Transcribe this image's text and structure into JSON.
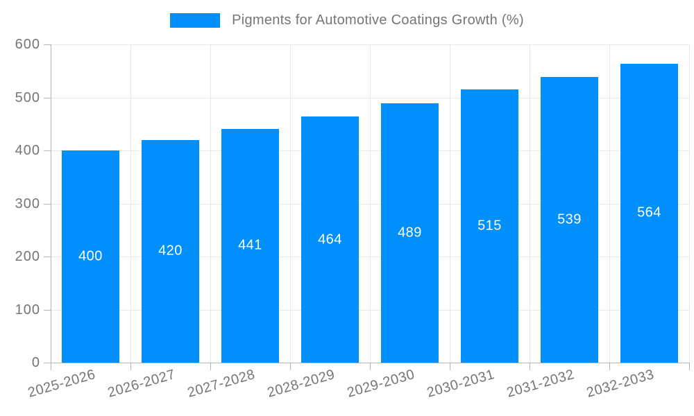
{
  "legend": {
    "label": "Pigments for Automotive Coatings Growth (%)",
    "swatch_color": "#008FFB"
  },
  "chart_data": {
    "type": "bar",
    "title": "",
    "xlabel": "",
    "ylabel": "",
    "categories": [
      "2025-2026",
      "2026-2027",
      "2027-2028",
      "2028-2029",
      "2029-2030",
      "2030-2031",
      "2031-2032",
      "2032-2033"
    ],
    "series": [
      {
        "name": "Pigments for Automotive Coatings Growth (%)",
        "values": [
          400,
          420,
          441,
          464,
          489,
          515,
          539,
          564
        ]
      }
    ],
    "value_labels": [
      "400",
      "420",
      "441",
      "464",
      "489",
      "515",
      "539",
      "564"
    ],
    "ylim": [
      0,
      600
    ],
    "yticks": [
      0,
      100,
      200,
      300,
      400,
      500,
      600
    ],
    "grid": true,
    "legend_position": "top",
    "x_label_rotation_deg": -16
  },
  "colors": {
    "bar": "#008FFB",
    "grid": "#e8e8e8",
    "axis": "#b3b3b3",
    "label": "#757575",
    "value_label": "#ffffff",
    "background": "#ffffff"
  }
}
